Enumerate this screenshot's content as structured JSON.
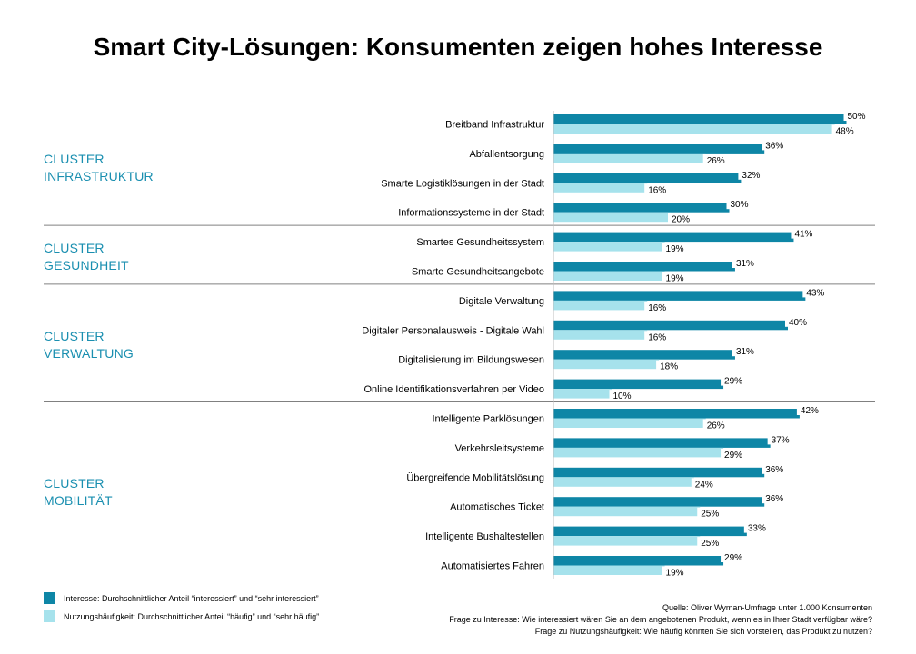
{
  "title": "Smart City-Lösungen: Konsumenten zeigen hohes Interesse",
  "clusters": [
    {
      "line1": "CLUSTER",
      "line2": "INFRASTRUKTUR"
    },
    {
      "line1": "CLUSTER",
      "line2": "GESUNDHEIT"
    },
    {
      "line1": "CLUSTER",
      "line2": "VERWALTUNG"
    },
    {
      "line1": "CLUSTER",
      "line2": "MOBILITÄT"
    }
  ],
  "legend": {
    "interest": "Interesse: Durchschnittlicher Anteil “interessiert” und “sehr interessiert”",
    "usage": "Nutzungshäufigkeit: Durchschnittlicher Anteil “häufig” und “sehr häufig”"
  },
  "source": {
    "line1": "Quelle: Oliver Wyman-Umfrage unter 1.000 Konsumenten",
    "line2": "Frage zu Interesse: Wie interessiert wären Sie an dem angebotenen Produkt, wenn es in Ihrer Stadt verfügbar wäre?",
    "line3": "Frage zu Nutzungshäufigkeit: Wie häufig könnten Sie sich vorstellen, das Produkt zu nutzen?"
  },
  "colors": {
    "interest": "#0e86a6",
    "usage": "#a6e2ec",
    "cluster_text": "#1a8fb0",
    "separator": "#808080"
  },
  "chart_data": {
    "type": "bar",
    "orientation": "horizontal",
    "unit": "%",
    "categories": [
      "Breitband Infrastruktur",
      "Abfallentsorgung",
      "Smarte Logistiklösungen in der Stadt",
      "Informationssysteme in der Stadt",
      "Smartes Gesundheitssystem",
      "Smarte Gesundheitsangebote",
      "Digitale Verwaltung",
      "Digitaler Personalausweis - Digitale Wahl",
      "Digitalisierung im Bildungswesen",
      "Online Identifikationsverfahren per Video",
      "Intelligente Parklösungen",
      "Verkehrsleitsysteme",
      "Übergreifende Mobilitätslösung",
      "Automatisches Ticket",
      "Intelligente Bushaltestellen",
      "Automatisiertes Fahren"
    ],
    "groups": [
      {
        "cluster": 0,
        "count": 4
      },
      {
        "cluster": 1,
        "count": 2
      },
      {
        "cluster": 2,
        "count": 4
      },
      {
        "cluster": 3,
        "count": 6
      }
    ],
    "series": [
      {
        "values": [
          50,
          36,
          32,
          30,
          41,
          31,
          43,
          40,
          31,
          29,
          42,
          37,
          36,
          36,
          33,
          29
        ]
      },
      {
        "values": [
          48,
          26,
          16,
          20,
          19,
          19,
          16,
          16,
          18,
          10,
          26,
          29,
          24,
          25,
          25,
          19
        ]
      }
    ],
    "xlim": [
      0,
      50
    ],
    "grid": false,
    "legend_position": "bottom-left"
  }
}
